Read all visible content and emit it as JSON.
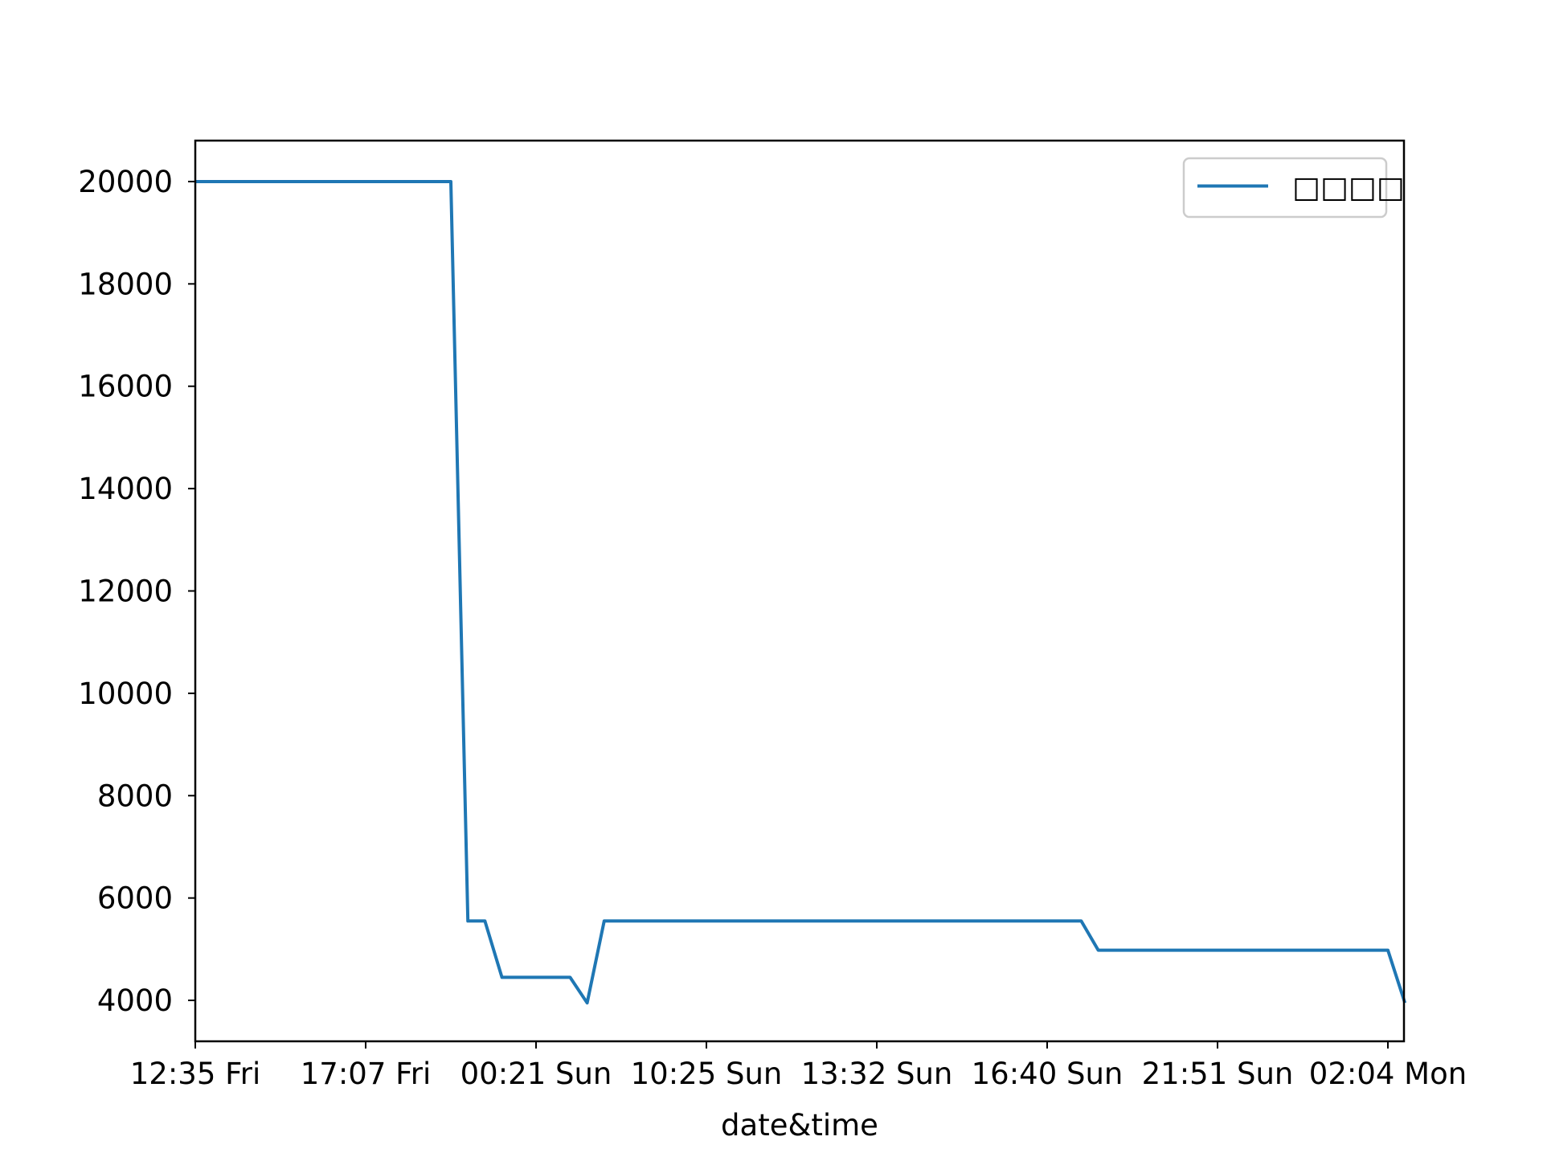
{
  "chart_data": {
    "type": "line",
    "title": "",
    "xlabel": "date&time",
    "ylabel": "",
    "x_tick_labels": [
      "12:35 Fri",
      "17:07 Fri",
      "00:21 Sun",
      "10:25 Sun",
      "13:32 Sun",
      "16:40 Sun",
      "21:51 Sun",
      "02:04 Mon"
    ],
    "y_ticks": [
      4000,
      6000,
      8000,
      10000,
      12000,
      14000,
      16000,
      18000,
      20000
    ],
    "ylim": [
      3200,
      20800
    ],
    "legend": {
      "position": "top-right",
      "entries": [
        "□□□□"
      ]
    },
    "grid": false,
    "series": [
      {
        "name": "□□□□",
        "color": "#1f77b4",
        "x_tick_position": [
          0,
          1.5,
          1.6,
          1.7,
          1.8,
          2.2,
          2.3,
          2.4,
          5.2,
          5.3,
          7.0,
          7.1
        ],
        "values": [
          20000,
          20000,
          5550,
          5550,
          4450,
          4450,
          3950,
          5550,
          5550,
          4980,
          4980,
          3950
        ]
      }
    ]
  }
}
